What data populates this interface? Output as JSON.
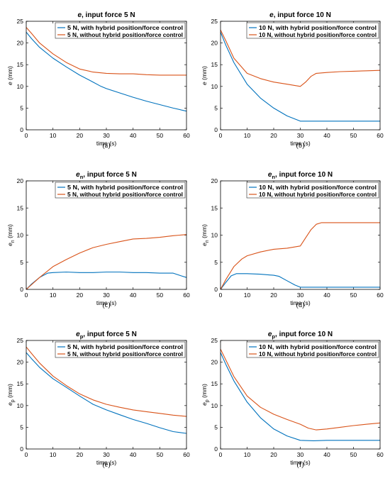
{
  "colors": {
    "with": "#0072BD",
    "without": "#D95319",
    "axis": "#000000",
    "tickmark": "#262626"
  },
  "chart_data": [
    {
      "type": "line",
      "caption": "(a)",
      "title_sym": "e",
      "title_sub": "",
      "title_rest": ", input force 5 N",
      "ylabel_sym": "e",
      "ylabel_sub": "",
      "ylabel_unit": "(mm)",
      "xlabel": "time (s)",
      "xlim": [
        0,
        60
      ],
      "ylim": [
        0,
        25
      ],
      "xticks": [
        0,
        10,
        20,
        30,
        40,
        50,
        60
      ],
      "yticks": [
        0,
        5,
        10,
        15,
        20,
        25
      ],
      "series": [
        {
          "name": "5 N, with hybrid position/force control",
          "color": "#0072BD",
          "points": [
            [
              0,
              22.5
            ],
            [
              2,
              21
            ],
            [
              5,
              19
            ],
            [
              10,
              16.5
            ],
            [
              15,
              14.5
            ],
            [
              20,
              12.6
            ],
            [
              25,
              11
            ],
            [
              28,
              10
            ],
            [
              30,
              9.5
            ],
            [
              35,
              8.5
            ],
            [
              40,
              7.5
            ],
            [
              45,
              6.6
            ],
            [
              50,
              5.8
            ],
            [
              55,
              5
            ],
            [
              60,
              4.3
            ]
          ]
        },
        {
          "name": "5 N, without hybrid position/force control",
          "color": "#D95319",
          "points": [
            [
              0,
              23.6
            ],
            [
              2,
              22.2
            ],
            [
              5,
              20
            ],
            [
              10,
              17.5
            ],
            [
              15,
              15.5
            ],
            [
              20,
              14
            ],
            [
              25,
              13.3
            ],
            [
              30,
              13
            ],
            [
              35,
              12.9
            ],
            [
              40,
              12.9
            ],
            [
              45,
              12.7
            ],
            [
              50,
              12.6
            ],
            [
              55,
              12.6
            ],
            [
              60,
              12.6
            ]
          ]
        }
      ]
    },
    {
      "type": "line",
      "caption": "(b)",
      "title_sym": "e",
      "title_sub": "",
      "title_rest": ", input force 10 N",
      "ylabel_sym": "e",
      "ylabel_sub": "",
      "ylabel_unit": "(mm)",
      "xlabel": "time (s)",
      "xlim": [
        0,
        60
      ],
      "ylim": [
        0,
        25
      ],
      "xticks": [
        0,
        10,
        20,
        30,
        40,
        50,
        60
      ],
      "yticks": [
        0,
        5,
        10,
        15,
        20,
        25
      ],
      "series": [
        {
          "name": "10 N, with hybrid position/force control",
          "color": "#0072BD",
          "points": [
            [
              0,
              22.5
            ],
            [
              2,
              19.5
            ],
            [
              5,
              15.5
            ],
            [
              10,
              10.5
            ],
            [
              15,
              7.3
            ],
            [
              20,
              5
            ],
            [
              25,
              3.2
            ],
            [
              30,
              2
            ],
            [
              35,
              2
            ],
            [
              40,
              2
            ],
            [
              45,
              2
            ],
            [
              50,
              2
            ],
            [
              55,
              2
            ],
            [
              60,
              2
            ]
          ]
        },
        {
          "name": "10 N, without hybrid position/force control",
          "color": "#D95319",
          "points": [
            [
              0,
              23
            ],
            [
              2,
              20.5
            ],
            [
              5,
              16.5
            ],
            [
              10,
              13
            ],
            [
              15,
              11.8
            ],
            [
              20,
              11
            ],
            [
              25,
              10.5
            ],
            [
              30,
              10
            ],
            [
              32,
              11
            ],
            [
              34,
              12.3
            ],
            [
              36,
              13
            ],
            [
              40,
              13.2
            ],
            [
              45,
              13.4
            ],
            [
              50,
              13.5
            ],
            [
              55,
              13.6
            ],
            [
              60,
              13.7
            ]
          ]
        }
      ]
    },
    {
      "type": "line",
      "caption": "(c)",
      "title_sym": "e",
      "title_sub": "n",
      "title_rest": ", input force 5 N",
      "ylabel_sym": "e",
      "ylabel_sub": "n",
      "ylabel_unit": "(mm)",
      "xlabel": "time (s)",
      "xlim": [
        0,
        60
      ],
      "ylim": [
        0,
        20
      ],
      "xticks": [
        0,
        10,
        20,
        30,
        40,
        50,
        60
      ],
      "yticks": [
        0,
        5,
        10,
        15,
        20
      ],
      "series": [
        {
          "name": "5 N, with hybrid position/force control",
          "color": "#0072BD",
          "points": [
            [
              0,
              0
            ],
            [
              2,
              1
            ],
            [
              5,
              2.2
            ],
            [
              8,
              3
            ],
            [
              10,
              3.1
            ],
            [
              15,
              3.2
            ],
            [
              20,
              3.1
            ],
            [
              25,
              3.1
            ],
            [
              30,
              3.2
            ],
            [
              35,
              3.2
            ],
            [
              40,
              3.1
            ],
            [
              45,
              3.1
            ],
            [
              50,
              3
            ],
            [
              55,
              3
            ],
            [
              58,
              2.5
            ],
            [
              60,
              2.2
            ]
          ]
        },
        {
          "name": "5 N, without hybrid position/force control",
          "color": "#D95319",
          "points": [
            [
              0,
              0
            ],
            [
              5,
              2.2
            ],
            [
              10,
              4.2
            ],
            [
              15,
              5.5
            ],
            [
              20,
              6.7
            ],
            [
              25,
              7.7
            ],
            [
              30,
              8.3
            ],
            [
              35,
              8.8
            ],
            [
              40,
              9.3
            ],
            [
              45,
              9.4
            ],
            [
              50,
              9.6
            ],
            [
              55,
              9.9
            ],
            [
              60,
              10.1
            ]
          ]
        }
      ]
    },
    {
      "type": "line",
      "caption": "(d)",
      "title_sym": "e",
      "title_sub": "n",
      "title_rest": ", input force 10 N",
      "ylabel_sym": "e",
      "ylabel_sub": "n",
      "ylabel_unit": "(mm)",
      "xlabel": "time (s)",
      "xlim": [
        0,
        60
      ],
      "ylim": [
        0,
        20
      ],
      "xticks": [
        0,
        10,
        20,
        30,
        40,
        50,
        60
      ],
      "yticks": [
        0,
        5,
        10,
        15,
        20
      ],
      "series": [
        {
          "name": "10 N, with hybrid position/force control",
          "color": "#0072BD",
          "points": [
            [
              0,
              0
            ],
            [
              2,
              1.3
            ],
            [
              4,
              2.5
            ],
            [
              6,
              2.9
            ],
            [
              10,
              2.9
            ],
            [
              15,
              2.8
            ],
            [
              20,
              2.6
            ],
            [
              22,
              2.4
            ],
            [
              25,
              1.6
            ],
            [
              28,
              0.8
            ],
            [
              30,
              0.4
            ],
            [
              35,
              0.4
            ],
            [
              40,
              0.4
            ],
            [
              50,
              0.4
            ],
            [
              60,
              0.4
            ]
          ]
        },
        {
          "name": "10 N, without hybrid position/force control",
          "color": "#D95319",
          "points": [
            [
              0,
              0
            ],
            [
              2,
              1.8
            ],
            [
              5,
              4.2
            ],
            [
              8,
              5.6
            ],
            [
              10,
              6.2
            ],
            [
              15,
              6.9
            ],
            [
              20,
              7.4
            ],
            [
              25,
              7.6
            ],
            [
              30,
              8
            ],
            [
              32,
              9.5
            ],
            [
              34,
              11
            ],
            [
              36,
              12
            ],
            [
              38,
              12.3
            ],
            [
              45,
              12.3
            ],
            [
              50,
              12.3
            ],
            [
              55,
              12.3
            ],
            [
              60,
              12.3
            ]
          ]
        }
      ]
    },
    {
      "type": "line",
      "caption": "(e)",
      "title_sym": "e",
      "title_sub": "p",
      "title_rest": ", input force 5 N",
      "ylabel_sym": "e",
      "ylabel_sub": "p",
      "ylabel_unit": "(mm)",
      "xlabel": "time (s)",
      "xlim": [
        0,
        60
      ],
      "ylim": [
        0,
        25
      ],
      "xticks": [
        0,
        10,
        20,
        30,
        40,
        50,
        60
      ],
      "yticks": [
        0,
        5,
        10,
        15,
        20,
        25
      ],
      "series": [
        {
          "name": "5 N, with hybrid position/force control",
          "color": "#0072BD",
          "points": [
            [
              0,
              22.2
            ],
            [
              2,
              20.8
            ],
            [
              5,
              18.8
            ],
            [
              10,
              16.2
            ],
            [
              15,
              14.2
            ],
            [
              20,
              12.2
            ],
            [
              25,
              10.3
            ],
            [
              30,
              9
            ],
            [
              35,
              7.9
            ],
            [
              40,
              6.8
            ],
            [
              45,
              5.9
            ],
            [
              50,
              4.9
            ],
            [
              55,
              4
            ],
            [
              60,
              3.6
            ]
          ]
        },
        {
          "name": "5 N, without hybrid position/force control",
          "color": "#D95319",
          "points": [
            [
              0,
              23.5
            ],
            [
              2,
              22
            ],
            [
              5,
              19.8
            ],
            [
              10,
              16.8
            ],
            [
              15,
              14.6
            ],
            [
              20,
              12.7
            ],
            [
              25,
              11.3
            ],
            [
              30,
              10.3
            ],
            [
              35,
              9.6
            ],
            [
              40,
              9
            ],
            [
              45,
              8.6
            ],
            [
              50,
              8.2
            ],
            [
              55,
              7.8
            ],
            [
              60,
              7.5
            ]
          ]
        }
      ]
    },
    {
      "type": "line",
      "caption": "(f)",
      "title_sym": "e",
      "title_sub": "p",
      "title_rest": ", input force 10 N",
      "ylabel_sym": "e",
      "ylabel_sub": "p",
      "ylabel_unit": "(mm)",
      "xlabel": "time (s)",
      "xlim": [
        0,
        60
      ],
      "ylim": [
        0,
        25
      ],
      "xticks": [
        0,
        10,
        20,
        30,
        40,
        50,
        60
      ],
      "yticks": [
        0,
        5,
        10,
        15,
        20,
        25
      ],
      "series": [
        {
          "name": "10 N, with hybrid position/force control",
          "color": "#0072BD",
          "points": [
            [
              0,
              22.2
            ],
            [
              2,
              19.5
            ],
            [
              5,
              15.7
            ],
            [
              10,
              10.8
            ],
            [
              15,
              7.2
            ],
            [
              20,
              4.6
            ],
            [
              25,
              3
            ],
            [
              30,
              2
            ],
            [
              35,
              1.9
            ],
            [
              40,
              2
            ],
            [
              45,
              2
            ],
            [
              50,
              2
            ],
            [
              55,
              2
            ],
            [
              60,
              2
            ]
          ]
        },
        {
          "name": "10 N, without hybrid position/force control",
          "color": "#D95319",
          "points": [
            [
              0,
              23
            ],
            [
              2,
              20.5
            ],
            [
              5,
              16.7
            ],
            [
              10,
              12.2
            ],
            [
              15,
              9.6
            ],
            [
              20,
              8
            ],
            [
              25,
              6.8
            ],
            [
              30,
              5.7
            ],
            [
              33,
              4.8
            ],
            [
              36,
              4.4
            ],
            [
              40,
              4.6
            ],
            [
              45,
              5
            ],
            [
              50,
              5.4
            ],
            [
              55,
              5.7
            ],
            [
              60,
              6
            ]
          ]
        }
      ]
    }
  ]
}
